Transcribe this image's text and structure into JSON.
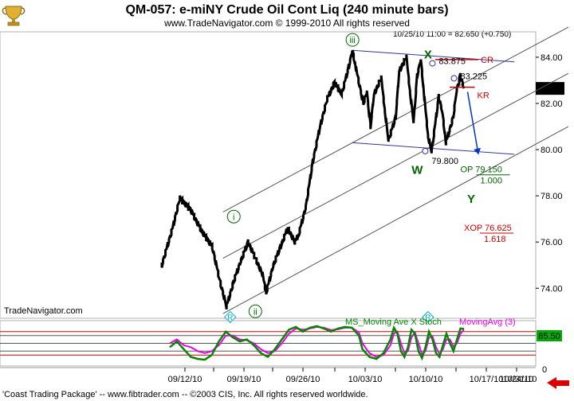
{
  "header": {
    "title": "QM-057:  e-miNY Crude Oil Cont Liq  (240 minute bars)",
    "copyright": "www.TradeNavigator.com © 1999-2010  All rights reserved",
    "last_bar": "10/25/10 11:00 = 82.650 (+0.750)",
    "watermark": "TradeNavigator.com",
    "footer": "'Coast Trading Package' -- www.fibtrader.com -- ©2003 CIS, Inc. All rights reserved worldwide."
  },
  "colors": {
    "price": "#000000",
    "channel": "#555555",
    "triangle": "#3333aa",
    "cr": "#cc0000",
    "wave_green": "#006600",
    "target_red": "#cc0000",
    "stoch_green": "#008800",
    "stoch_magenta": "#ee00ee",
    "arrow_blue": "#0033cc",
    "last_box": "#000000",
    "stoch_box": "#00aa00"
  },
  "chart_data": [
    {
      "type": "bar",
      "title": "QM-057:  e-miNY Crude Oil Cont Liq  (240 minute bars)",
      "subtitle": "www.TradeNavigator.com © 1999-2010  All rights reserved",
      "y_ticks": [
        "84.00",
        "82.00",
        "80.00",
        "78.00",
        "76.00",
        "74.00"
      ],
      "ylim": [
        72.7,
        85.1
      ],
      "x_ticks": [
        "09/12/10",
        "09/19/10",
        "09/26/10",
        "10/03/10",
        "10/10/10",
        "10/17/10",
        "10/24/10",
        "10/31/10"
      ],
      "grid": false,
      "last_price": "82.650",
      "price_path": [
        [
          0,
          75.0
        ],
        [
          3,
          76.6
        ],
        [
          5,
          77.9
        ],
        [
          8,
          77.4
        ],
        [
          11,
          76.5
        ],
        [
          14,
          75.8
        ],
        [
          16,
          74.4
        ],
        [
          18,
          73.2
        ],
        [
          20,
          74.3
        ],
        [
          22,
          75.2
        ],
        [
          24,
          76.0
        ],
        [
          26,
          75.3
        ],
        [
          28,
          74.6
        ],
        [
          29,
          73.8
        ],
        [
          31,
          75.0
        ],
        [
          33,
          75.8
        ],
        [
          35,
          76.6
        ],
        [
          37,
          76.0
        ],
        [
          38,
          76.3
        ],
        [
          40,
          77.5
        ],
        [
          42,
          79.5
        ],
        [
          44,
          81.0
        ],
        [
          46,
          82.2
        ],
        [
          48,
          82.9
        ],
        [
          50,
          82.4
        ],
        [
          52,
          83.6
        ],
        [
          53,
          84.3
        ],
        [
          54,
          83.5
        ],
        [
          56,
          82.0
        ],
        [
          57,
          82.5
        ],
        [
          58,
          81.0
        ],
        [
          59,
          82.4
        ],
        [
          61,
          83.1
        ],
        [
          62,
          81.7
        ],
        [
          63,
          80.4
        ],
        [
          65,
          81.4
        ],
        [
          66,
          83.4
        ],
        [
          68,
          84.0
        ],
        [
          69,
          82.5
        ],
        [
          70,
          81.2
        ],
        [
          71,
          83.2
        ],
        [
          72,
          83.9
        ],
        [
          73,
          82.2
        ],
        [
          74,
          80.6
        ],
        [
          75,
          79.9
        ],
        [
          77,
          82.3
        ],
        [
          78,
          81.6
        ],
        [
          79,
          80.3
        ],
        [
          81,
          81.4
        ],
        [
          82,
          82.6
        ],
        [
          83,
          83.2
        ],
        [
          84,
          82.65
        ]
      ],
      "channel_lines": [
        {
          "from": [
            17,
            77.3
          ],
          "to": [
            113,
            85.3
          ]
        },
        {
          "from": [
            17,
            75.3
          ],
          "to": [
            113,
            83.3
          ]
        },
        {
          "from": [
            17,
            72.9
          ],
          "to": [
            113,
            81.0
          ]
        }
      ],
      "triangle_lines": [
        {
          "from": [
            53,
            84.3
          ],
          "to": [
            98,
            83.8
          ]
        },
        {
          "from": [
            53,
            80.3
          ],
          "to": [
            98,
            79.8
          ]
        }
      ],
      "levels": [
        {
          "label": "83.875",
          "value": 83.875,
          "x": 77
        },
        {
          "label": "83.225",
          "value": 83.225,
          "x": 83
        },
        {
          "label": "79.800",
          "value": 79.8,
          "x": 75
        }
      ],
      "cr_line": {
        "label": "CR",
        "value": 83.9,
        "x_from": 76,
        "x_to": 88
      },
      "kr_line": {
        "label": "KR",
        "value": 82.7,
        "x_from": 80,
        "x_to": 87
      },
      "wave_labels": [
        {
          "label": "iii",
          "x": 53,
          "value": 84.75,
          "style": "circle"
        },
        {
          "label": "i",
          "x": 20,
          "value": 77.1,
          "style": "circle"
        },
        {
          "label": "ii",
          "x": 26,
          "value": 73.0,
          "style": "circle"
        },
        {
          "label": "X",
          "x": 74,
          "value": 84.15,
          "style": "bold"
        },
        {
          "label": "W",
          "x": 71,
          "value": 79.15,
          "style": "bold"
        },
        {
          "label": "Y",
          "x": 86,
          "value": 77.9,
          "style": "bold"
        }
      ],
      "markers": [
        {
          "label": "R",
          "x": 19,
          "value": 72.75
        },
        {
          "label": "R",
          "x": 74,
          "value": 72.75
        }
      ],
      "targets": [
        {
          "label": "OP",
          "price": "79.150",
          "ratio": "1.000",
          "x": 83,
          "value": 79.15,
          "color": "green"
        },
        {
          "label": "XOP",
          "price": "76.625",
          "ratio": "1.618",
          "x": 84,
          "value": 76.625,
          "color": "red"
        }
      ],
      "forecast_arrow": {
        "from": [
          85,
          82.5
        ],
        "to": [
          88,
          79.8
        ]
      }
    },
    {
      "type": "line",
      "title": "MS_Moving Ave X Stoch",
      "legend_secondary": "MovingAvg (3)",
      "y_ticks": [
        "0"
      ],
      "ylim": [
        0,
        100
      ],
      "current_value": "85.50",
      "reference_levels": [
        80,
        70,
        50,
        30,
        20
      ],
      "series": [
        {
          "name": "MS_Moving Ave X Stoch",
          "values": [
            [
              0,
              40
            ],
            [
              2,
              55
            ],
            [
              4,
              35
            ],
            [
              6,
              15
            ],
            [
              8,
              10
            ],
            [
              10,
              8
            ],
            [
              12,
              20
            ],
            [
              14,
              55
            ],
            [
              16,
              80
            ],
            [
              18,
              65
            ],
            [
              20,
              55
            ],
            [
              22,
              60
            ],
            [
              24,
              45
            ],
            [
              26,
              25
            ],
            [
              28,
              15
            ],
            [
              30,
              35
            ],
            [
              32,
              60
            ],
            [
              34,
              85
            ],
            [
              36,
              92
            ],
            [
              38,
              80
            ],
            [
              40,
              90
            ],
            [
              42,
              94
            ],
            [
              44,
              88
            ],
            [
              46,
              80
            ],
            [
              48,
              88
            ],
            [
              50,
              92
            ],
            [
              52,
              90
            ],
            [
              54,
              70
            ],
            [
              55,
              35
            ],
            [
              57,
              15
            ],
            [
              59,
              10
            ],
            [
              61,
              25
            ],
            [
              63,
              60
            ],
            [
              64,
              90
            ],
            [
              65,
              75
            ],
            [
              66,
              30
            ],
            [
              67,
              15
            ],
            [
              68,
              40
            ],
            [
              69,
              85
            ],
            [
              70,
              75
            ],
            [
              71,
              30
            ],
            [
              72,
              12
            ],
            [
              73,
              40
            ],
            [
              74,
              80
            ],
            [
              75,
              60
            ],
            [
              76,
              25
            ],
            [
              77,
              15
            ],
            [
              78,
              45
            ],
            [
              79,
              75
            ],
            [
              80,
              50
            ],
            [
              81,
              30
            ],
            [
              82,
              60
            ],
            [
              83,
              88
            ],
            [
              84,
              87
            ]
          ]
        },
        {
          "name": "MovingAvg (3)",
          "values": [
            [
              0,
              50
            ],
            [
              2,
              60
            ],
            [
              4,
              45
            ],
            [
              6,
              40
            ],
            [
              8,
              30
            ],
            [
              10,
              25
            ],
            [
              12,
              30
            ],
            [
              14,
              45
            ],
            [
              16,
              70
            ],
            [
              18,
              70
            ],
            [
              20,
              60
            ],
            [
              22,
              58
            ],
            [
              24,
              50
            ],
            [
              26,
              35
            ],
            [
              28,
              25
            ],
            [
              30,
              30
            ],
            [
              32,
              50
            ],
            [
              34,
              75
            ],
            [
              36,
              88
            ],
            [
              38,
              85
            ],
            [
              40,
              88
            ],
            [
              42,
              92
            ],
            [
              44,
              90
            ],
            [
              46,
              84
            ],
            [
              48,
              86
            ],
            [
              50,
              90
            ],
            [
              52,
              90
            ],
            [
              54,
              78
            ],
            [
              55,
              50
            ],
            [
              57,
              25
            ],
            [
              59,
              15
            ],
            [
              61,
              20
            ],
            [
              63,
              45
            ],
            [
              64,
              75
            ],
            [
              65,
              80
            ],
            [
              66,
              50
            ],
            [
              67,
              25
            ],
            [
              68,
              30
            ],
            [
              69,
              65
            ],
            [
              70,
              78
            ],
            [
              71,
              50
            ],
            [
              72,
              22
            ],
            [
              73,
              30
            ],
            [
              74,
              65
            ],
            [
              75,
              68
            ],
            [
              76,
              40
            ],
            [
              77,
              22
            ],
            [
              78,
              35
            ],
            [
              79,
              60
            ],
            [
              80,
              60
            ],
            [
              81,
              42
            ],
            [
              82,
              50
            ],
            [
              83,
              75
            ],
            [
              84,
              85
            ]
          ]
        }
      ]
    }
  ]
}
